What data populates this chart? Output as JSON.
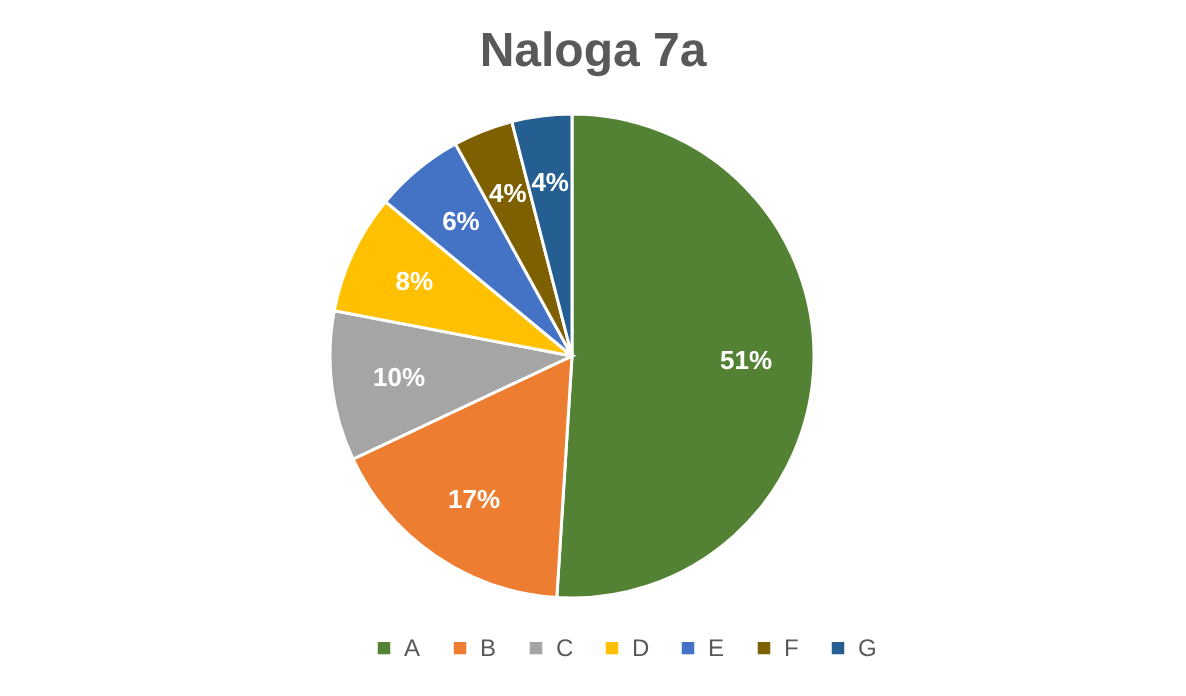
{
  "chart_data": {
    "type": "pie",
    "title": "Naloga 7a",
    "categories": [
      "A",
      "B",
      "C",
      "D",
      "E",
      "F",
      "G"
    ],
    "values": [
      51,
      17,
      10,
      8,
      6,
      4,
      4
    ],
    "value_labels": [
      "51%",
      "17%",
      "10%",
      "8%",
      "6%",
      "4%",
      "4%"
    ],
    "colors": [
      "#548235",
      "#ed7d31",
      "#a5a5a5",
      "#ffc000",
      "#4472c4",
      "#7f6000",
      "#255e91"
    ],
    "legend": "bottom"
  }
}
